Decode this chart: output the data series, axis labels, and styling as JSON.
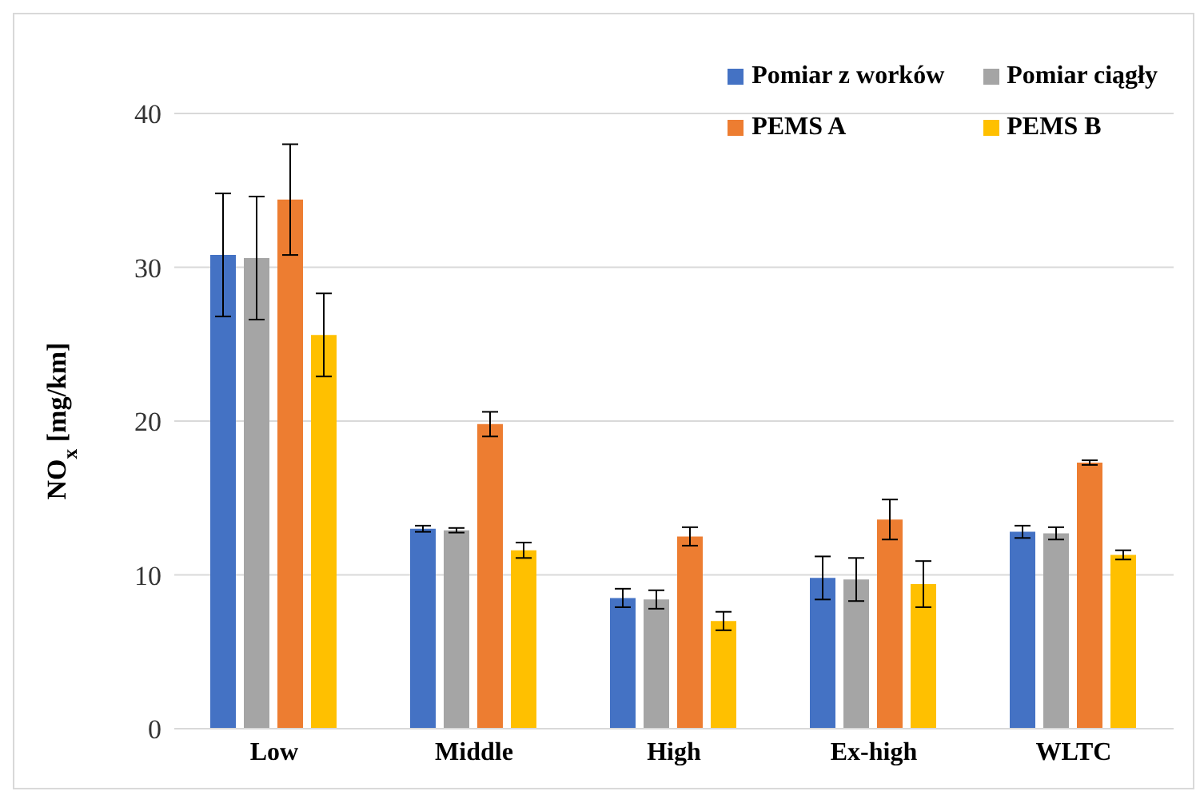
{
  "chart_data": {
    "type": "bar",
    "ylabel": "NO$_{x}$ [mg/km]",
    "categories": [
      "Low",
      "Middle",
      "High",
      "Ex-high",
      "WLTC"
    ],
    "series": [
      {
        "name": "Pomiar z worków",
        "color": "#4472c4",
        "values": [
          30.8,
          13.0,
          8.5,
          9.8,
          12.8
        ],
        "errors": [
          4.0,
          0.2,
          0.6,
          1.4,
          0.4
        ]
      },
      {
        "name": "Pomiar ciągły",
        "color": "#a5a5a5",
        "values": [
          30.6,
          12.9,
          8.4,
          9.7,
          12.7
        ],
        "errors": [
          4.0,
          0.15,
          0.6,
          1.4,
          0.4
        ]
      },
      {
        "name": "PEMS A",
        "color": "#ed7d31",
        "values": [
          34.4,
          19.8,
          12.5,
          13.6,
          17.3
        ],
        "errors": [
          3.6,
          0.8,
          0.6,
          1.3,
          0.15
        ]
      },
      {
        "name": "PEMS B",
        "color": "#ffc000",
        "values": [
          25.6,
          11.6,
          7.0,
          9.4,
          11.3
        ],
        "errors": [
          2.7,
          0.5,
          0.6,
          1.5,
          0.3
        ]
      }
    ],
    "ylim": [
      0,
      40
    ],
    "yticks": [
      0,
      10,
      20,
      30,
      40
    ],
    "grid": "y",
    "legend": "top right"
  }
}
